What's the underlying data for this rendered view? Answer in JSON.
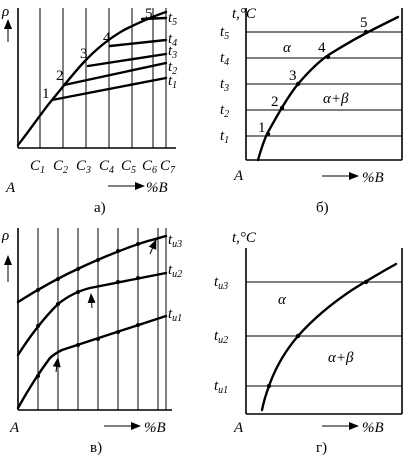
{
  "panels": {
    "a": {
      "y_axis": "ρ",
      "origin": "A",
      "x_axis": "%B",
      "x_labels": [
        {
          "main": "C",
          "sub": "1"
        },
        {
          "main": "C",
          "sub": "2"
        },
        {
          "main": "C",
          "sub": "3"
        },
        {
          "main": "C",
          "sub": "4"
        },
        {
          "main": "C",
          "sub": "5"
        },
        {
          "main": "C",
          "sub": "6"
        },
        {
          "main": "C",
          "sub": "7"
        }
      ],
      "curve_labels": [
        {
          "main": "t",
          "sub": "5"
        },
        {
          "main": "t",
          "sub": "4"
        },
        {
          "main": "t",
          "sub": "3"
        },
        {
          "main": "t",
          "sub": "2"
        },
        {
          "main": "t",
          "sub": "1"
        }
      ],
      "point_numbers": [
        "1",
        "2",
        "3",
        "4",
        "5"
      ],
      "caption": "а)"
    },
    "b": {
      "y_axis": "t,°C",
      "origin": "A",
      "x_axis": "%B",
      "t_labels": [
        {
          "main": "t",
          "sub": "5"
        },
        {
          "main": "t",
          "sub": "4"
        },
        {
          "main": "t",
          "sub": "3"
        },
        {
          "main": "t",
          "sub": "2"
        },
        {
          "main": "t",
          "sub": "1"
        }
      ],
      "point_numbers": [
        "1",
        "2",
        "3",
        "4",
        "5"
      ],
      "phase_alpha": "α",
      "phase_alpha_beta": "α+β",
      "caption": "б)"
    },
    "c": {
      "y_axis": "ρ",
      "origin": "A",
      "x_axis": "%B",
      "curve_labels": [
        {
          "main": "t",
          "sub": "u3"
        },
        {
          "main": "t",
          "sub": "u2"
        },
        {
          "main": "t",
          "sub": "u1"
        }
      ],
      "caption": "в)"
    },
    "d": {
      "y_axis": "t,°C",
      "origin": "A",
      "x_axis": "%B",
      "t_labels": [
        {
          "main": "t",
          "sub": "u3"
        },
        {
          "main": "t",
          "sub": "u2"
        },
        {
          "main": "t",
          "sub": "u1"
        }
      ],
      "phase_alpha": "α",
      "phase_alpha_beta": "α+β",
      "caption": "г)"
    }
  }
}
